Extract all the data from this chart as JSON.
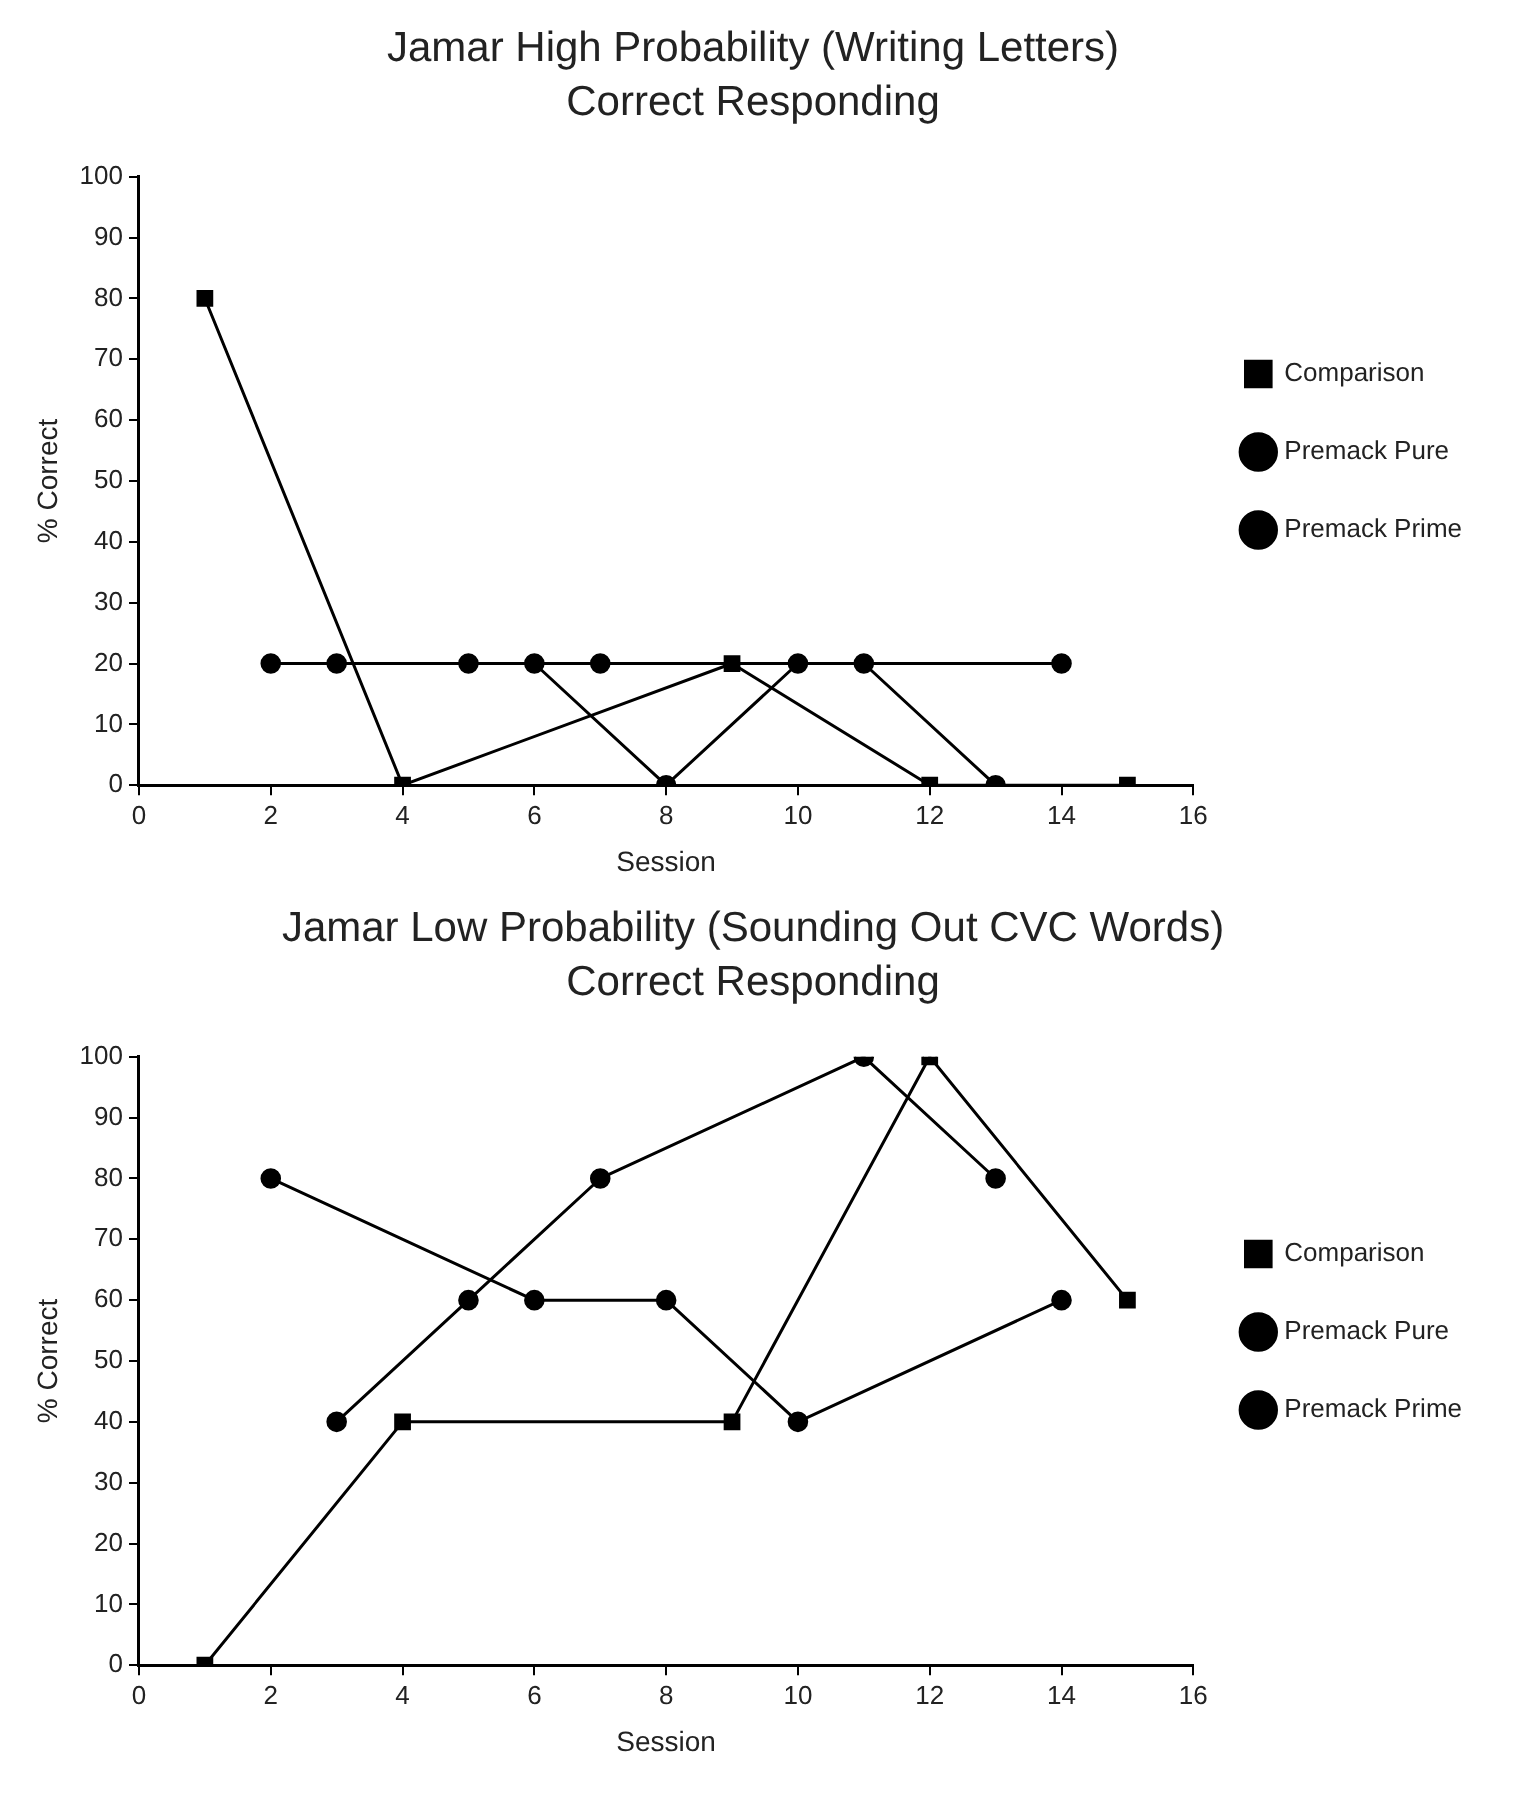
{
  "chart_data": [
    {
      "type": "line",
      "title": "Jamar High Probability (Writing Letters)",
      "subtitle": "Correct Responding",
      "xlabel": "Session",
      "ylabel": "% Correct",
      "xlim": [
        0,
        16
      ],
      "xticks": [
        0,
        2,
        4,
        6,
        8,
        10,
        12,
        14,
        16
      ],
      "ylim": [
        0,
        100
      ],
      "yticks": [
        0,
        10,
        20,
        30,
        40,
        50,
        60,
        70,
        80,
        90,
        100
      ],
      "grid": false,
      "legend": "right",
      "line_style": "solid",
      "series": [
        {
          "name": "Comparison",
          "color": "#000000",
          "marker": "square",
          "x": [
            1,
            4,
            9,
            12,
            15
          ],
          "values": [
            80,
            0,
            20,
            0,
            0
          ]
        },
        {
          "name": "Premack Pure",
          "color": "#000000",
          "marker": "circle",
          "x": [
            2,
            6,
            8,
            10,
            14
          ],
          "values": [
            20,
            20,
            0,
            20,
            20
          ]
        },
        {
          "name": "Premack Prime",
          "color": "#000000",
          "marker": "circle",
          "x": [
            3,
            5,
            7,
            11,
            13
          ],
          "values": [
            20,
            20,
            20,
            20,
            0
          ]
        }
      ]
    },
    {
      "type": "line",
      "title": "Jamar Low Probability (Sounding Out CVC Words)",
      "subtitle": "Correct Responding",
      "xlabel": "Session",
      "ylabel": "% Correct",
      "xlim": [
        0,
        16
      ],
      "xticks": [
        0,
        2,
        4,
        6,
        8,
        10,
        12,
        14,
        16
      ],
      "ylim": [
        0,
        100
      ],
      "yticks": [
        0,
        10,
        20,
        30,
        40,
        50,
        60,
        70,
        80,
        90,
        100
      ],
      "grid": false,
      "legend": "right",
      "line_style": "solid",
      "series": [
        {
          "name": "Comparison",
          "color": "#000000",
          "marker": "square",
          "x": [
            1,
            4,
            9,
            12,
            15
          ],
          "values": [
            0,
            40,
            40,
            100,
            60
          ]
        },
        {
          "name": "Premack Pure",
          "color": "#000000",
          "marker": "circle",
          "x": [
            2,
            6,
            8,
            10,
            14
          ],
          "values": [
            80,
            60,
            60,
            40,
            60
          ]
        },
        {
          "name": "Premack Prime",
          "color": "#000000",
          "marker": "circle",
          "x": [
            3,
            5,
            7,
            11,
            13
          ],
          "values": [
            40,
            60,
            80,
            100,
            80
          ]
        }
      ]
    }
  ]
}
